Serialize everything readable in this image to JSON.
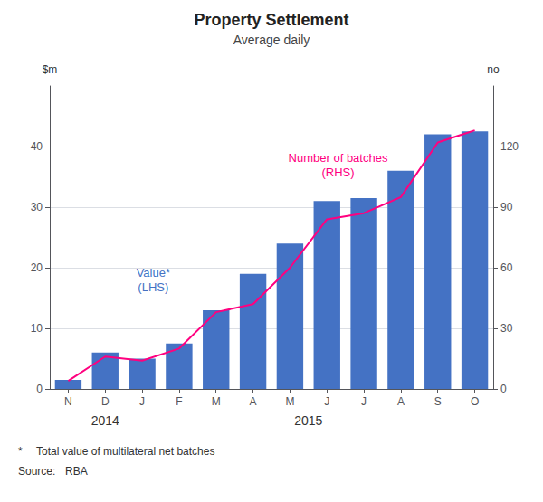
{
  "chart_data": {
    "type": "bar",
    "title": "Property Settlement",
    "subtitle": "Average daily",
    "y_label": "$m",
    "y2_label": "no",
    "categories": [
      "N",
      "D",
      "J",
      "F",
      "M",
      "A",
      "M",
      "J",
      "J",
      "A",
      "S",
      "O"
    ],
    "series": [
      {
        "type": "bar",
        "color": "#4472C4",
        "values": [
          1.5,
          6.0,
          5.0,
          7.5,
          13.0,
          19.0,
          24.0,
          31.0,
          31.5,
          36.0,
          42.0,
          42.5
        ]
      },
      {
        "type": "line",
        "color": "#FF007F",
        "axis": "y2",
        "values": [
          4.0,
          16.0,
          14.0,
          20.0,
          38.0,
          42.0,
          60.0,
          84.0,
          87.0,
          95.0,
          122.0,
          128.0
        ]
      }
    ],
    "ylim": [
      0,
      50
    ],
    "yticks": [
      0,
      10,
      20,
      30,
      40
    ],
    "y2lim": [
      0,
      150
    ],
    "y2ticks": [
      0,
      30,
      60,
      90,
      120
    ],
    "grid": true,
    "annotations": [
      {
        "text": "Value*\n(LHS)",
        "color": "#4472C4"
      },
      {
        "text": "Number of batches\n(RHS)",
        "color": "#FF007F"
      }
    ],
    "year_labels": [
      "2014",
      "2015"
    ],
    "footnotes": [
      [
        "*",
        "Total value of multilateral net batches"
      ],
      [
        "Source:",
        "RBA"
      ]
    ]
  }
}
